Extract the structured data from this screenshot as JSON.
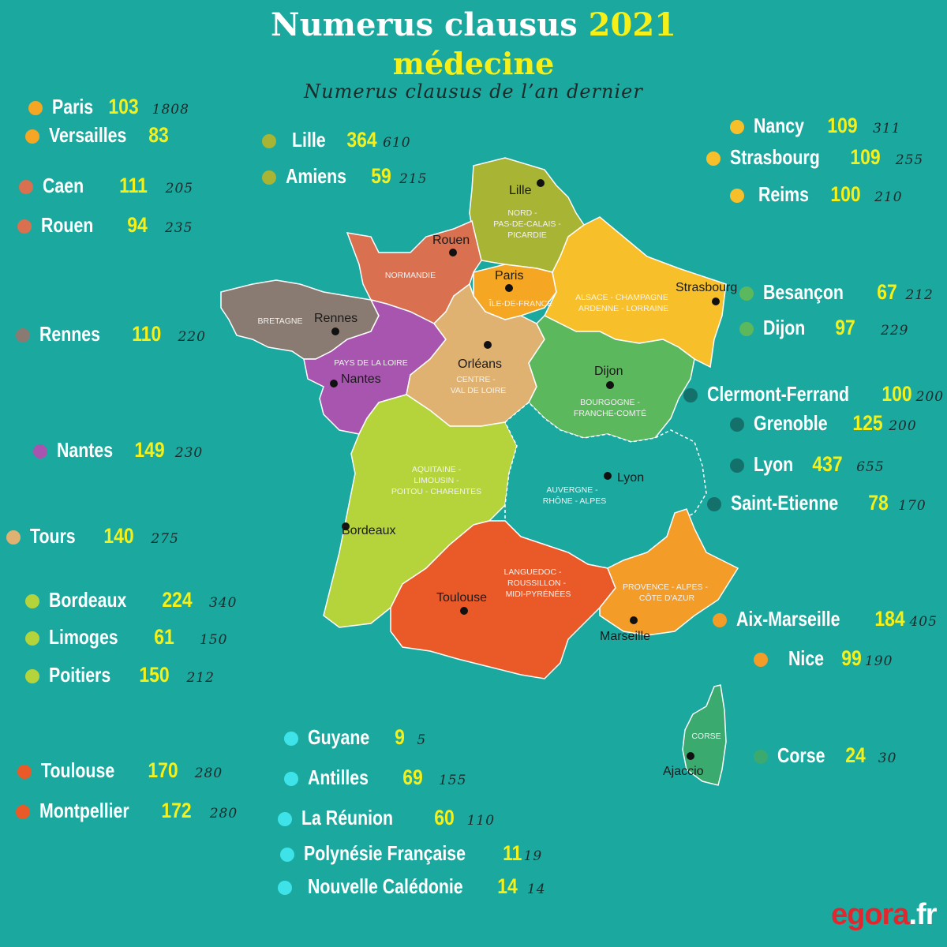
{
  "header": {
    "title": "Numerus clausus",
    "title_year": "2021",
    "subtitle": "médecine",
    "legend_note": "Numerus clausus de l’an dernier"
  },
  "colors": {
    "background": "#1aa89f",
    "highlight_number": "#f5ef1a",
    "ile_de_france": "#f5a623",
    "normandie": "#d97050",
    "bretagne": "#8a7b72",
    "pays_de_la_loire": "#a855b0",
    "centre_val_de_loire": "#dfb272",
    "nord_picardie": "#a8b433",
    "alsace_champagne_lorraine": "#f7c02a",
    "bourgogne_franche_comte": "#5cb85c",
    "auvergne_rhone_alpes": "#14706a",
    "aquitaine": "#b5d33a",
    "occitanie": "#ea5a28",
    "paca": "#f39c28",
    "corse": "#3aaa6e",
    "outre_mer": "#3de3e8"
  },
  "entries": [
    {
      "name": "Paris",
      "nc": "103",
      "prev": "1808",
      "dot": "#f5a623"
    },
    {
      "name": "Versailles",
      "nc": "83",
      "prev": "",
      "dot": "#f5a623"
    },
    {
      "name": "Caen",
      "nc": "111",
      "prev": "205",
      "dot": "#d97050"
    },
    {
      "name": "Rouen",
      "nc": "94",
      "prev": "235",
      "dot": "#d97050"
    },
    {
      "name": "Rennes",
      "nc": "110",
      "prev": "220",
      "dot": "#8a7b72"
    },
    {
      "name": "Nantes",
      "nc": "149",
      "prev": "230",
      "dot": "#a855b0"
    },
    {
      "name": "Tours",
      "nc": "140",
      "prev": "275",
      "dot": "#dfb272"
    },
    {
      "name": "Bordeaux",
      "nc": "224",
      "prev": "340",
      "dot": "#b5d33a"
    },
    {
      "name": "Limoges",
      "nc": "61",
      "prev": "150",
      "dot": "#b5d33a"
    },
    {
      "name": "Poitiers",
      "nc": "150",
      "prev": "212",
      "dot": "#b5d33a"
    },
    {
      "name": "Toulouse",
      "nc": "170",
      "prev": "280",
      "dot": "#ea5a28"
    },
    {
      "name": "Montpellier",
      "nc": "172",
      "prev": "280",
      "dot": "#ea5a28"
    },
    {
      "name": "Lille",
      "nc": "364",
      "prev": "610",
      "dot": "#a8b433"
    },
    {
      "name": "Amiens",
      "nc": "59",
      "prev": "215",
      "dot": "#a8b433"
    },
    {
      "name": "Nancy",
      "nc": "109",
      "prev": "311",
      "dot": "#f7c02a"
    },
    {
      "name": "Strasbourg",
      "nc": "109",
      "prev": "255",
      "dot": "#f7c02a"
    },
    {
      "name": "Reims",
      "nc": "100",
      "prev": "210",
      "dot": "#f7c02a"
    },
    {
      "name": "Besançon",
      "nc": "67",
      "prev": "212",
      "dot": "#5cb85c"
    },
    {
      "name": "Dijon",
      "nc": "97",
      "prev": "229",
      "dot": "#5cb85c"
    },
    {
      "name": "Clermont-Ferrand",
      "nc": "100",
      "prev": "200",
      "dot": "#14706a"
    },
    {
      "name": "Grenoble",
      "nc": "125",
      "prev": "200",
      "dot": "#14706a"
    },
    {
      "name": "Lyon",
      "nc": "437",
      "prev": "655",
      "dot": "#14706a"
    },
    {
      "name": "Saint-Etienne",
      "nc": "78",
      "prev": "170",
      "dot": "#14706a"
    },
    {
      "name": "Aix-Marseille",
      "nc": "184",
      "prev": "405",
      "dot": "#f39c28"
    },
    {
      "name": "Nice",
      "nc": "99",
      "prev": "190",
      "dot": "#f39c28"
    },
    {
      "name": "Corse",
      "nc": "24",
      "prev": "30",
      "dot": "#3aaa6e"
    },
    {
      "name": "Guyane",
      "nc": "9",
      "prev": "5",
      "dot": "#3de3e8"
    },
    {
      "name": "Antilles",
      "nc": "69",
      "prev": "155",
      "dot": "#3de3e8"
    },
    {
      "name": "La Réunion",
      "nc": "60",
      "prev": "110",
      "dot": "#3de3e8"
    },
    {
      "name": "Polynésie Française",
      "nc": "11",
      "prev": "19",
      "dot": "#3de3e8"
    },
    {
      "name": "Nouvelle Calédonie",
      "nc": "14",
      "prev": "14",
      "dot": "#3de3e8"
    }
  ],
  "map": {
    "regions": {
      "nord": "NORD - PAS-DE-CALAIS - PICARDIE",
      "normandie": "NORMANDIE",
      "ile_de_france": "ÎLE-DE-FRANCE",
      "alsace": "ALSACE - CHAMPAGNE ARDENNE - LORRAINE",
      "bretagne": "BRETAGNE",
      "pays_de_la_loire": "PAYS DE LA LOIRE",
      "centre": "CENTRE - VAL DE LOIRE",
      "bourgogne": "BOURGOGNE - FRANCHE-COMTÉ",
      "aquitaine": "AQUITAINE - LIMOUSIN - POITOU - CHARENTES",
      "auvergne": "AUVERGNE - RHÔNE - ALPES",
      "occitanie": "LANGUEDOC - ROUSSILLON - MIDI-PYRÉNÉES",
      "paca": "PROVENCE - ALPES - CÔTE D'AZUR",
      "corse": "CORSE"
    },
    "cities": {
      "lille": "Lille",
      "rouen": "Rouen",
      "paris": "Paris",
      "strasbourg": "Strasbourg",
      "rennes": "Rennes",
      "orleans": "Orléans",
      "nantes": "Nantes",
      "dijon": "Dijon",
      "lyon": "Lyon",
      "bordeaux": "Bordeaux",
      "toulouse": "Toulouse",
      "marseille": "Marseille",
      "ajaccio": "Ajaccio"
    }
  },
  "logo": {
    "brand": "egora",
    "tld": ".fr"
  }
}
